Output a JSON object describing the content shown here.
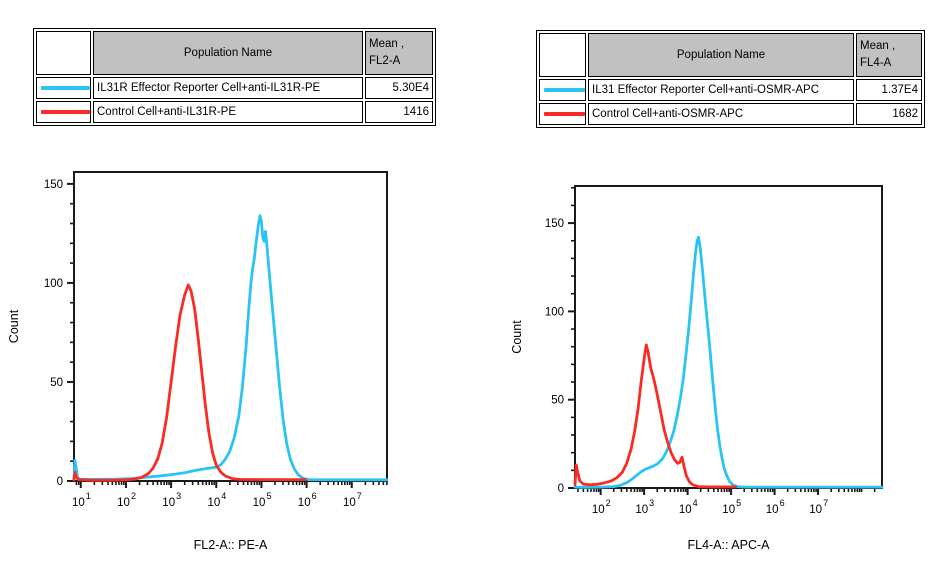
{
  "colors": {
    "cyan": "#2BC4F2",
    "red": "#F92B25",
    "axis": "#1a1a1a",
    "table_header_bg": "#c1c1c1"
  },
  "tables": [
    {
      "header": {
        "population": "Population Name",
        "mean_line1": "Mean ,",
        "mean_line2": "FL2-A"
      },
      "rows": [
        {
          "population": "IL31R Effector Reporter Cell+anti-IL31R-PE",
          "mean": "5.30E4",
          "color": "#2BC4F2"
        },
        {
          "population": "Control Cell+anti-IL31R-PE",
          "mean": "1416",
          "color": "#F92B25"
        }
      ]
    },
    {
      "header": {
        "population": "Population Name",
        "mean_line1": "Mean ,",
        "mean_line2": "FL4-A"
      },
      "rows": [
        {
          "population": "IL31 Effector Reporter Cell+anti-OSMR-APC",
          "mean": "1.37E4",
          "color": "#2BC4F2"
        },
        {
          "population": "Control Cell+anti-OSMR-APC",
          "mean": "1682",
          "color": "#F92B25"
        }
      ]
    }
  ],
  "chart_data": [
    {
      "type": "line",
      "subtype": "flow-histogram",
      "title": "",
      "xlabel": "FL2-A:: PE-A",
      "ylabel": "Count",
      "x_scale": "log",
      "x_log_min": 0.85,
      "x_log_max": 7.78,
      "x_decade_ticks": [
        1,
        2,
        3,
        4,
        5,
        6,
        7
      ],
      "ylim": [
        0,
        156
      ],
      "y_major_ticks": [
        0,
        50,
        100,
        150
      ],
      "y_minor_step": 10,
      "grid": false,
      "legend_position": "table-above",
      "series": [
        {
          "name": "IL31R Effector Reporter Cell+anti-IL31R-PE",
          "color": "#2BC4F2",
          "mean": "5.30E4",
          "points": [
            [
              0.85,
              0.8
            ],
            [
              0.87,
              10.5
            ],
            [
              0.9,
              6
            ],
            [
              0.93,
              1.5
            ],
            [
              1.0,
              0.8
            ],
            [
              1.4,
              0.8
            ],
            [
              1.8,
              0.9
            ],
            [
              2.1,
              1.2
            ],
            [
              2.4,
              1.8
            ],
            [
              2.7,
              2.4
            ],
            [
              3.0,
              3.2
            ],
            [
              3.3,
              4.2
            ],
            [
              3.5,
              5.2
            ],
            [
              3.7,
              6.0
            ],
            [
              3.85,
              6.5
            ],
            [
              4.0,
              7.0
            ],
            [
              4.1,
              8.2
            ],
            [
              4.2,
              11
            ],
            [
              4.3,
              15
            ],
            [
              4.4,
              22
            ],
            [
              4.5,
              33
            ],
            [
              4.58,
              48
            ],
            [
              4.66,
              68
            ],
            [
              4.72,
              87
            ],
            [
              4.77,
              101
            ],
            [
              4.81,
              108
            ],
            [
              4.84,
              112
            ],
            [
              4.88,
              120
            ],
            [
              4.93,
              129
            ],
            [
              4.97,
              134
            ],
            [
              5.0,
              131
            ],
            [
              5.03,
              123
            ],
            [
              5.06,
              121
            ],
            [
              5.09,
              126
            ],
            [
              5.12,
              119
            ],
            [
              5.17,
              106
            ],
            [
              5.24,
              88
            ],
            [
              5.32,
              68
            ],
            [
              5.4,
              48
            ],
            [
              5.48,
              31
            ],
            [
              5.56,
              19
            ],
            [
              5.64,
              11
            ],
            [
              5.73,
              6
            ],
            [
              5.82,
              3
            ],
            [
              5.93,
              1.3
            ],
            [
              6.05,
              0.7
            ],
            [
              6.5,
              0.6
            ],
            [
              7.78,
              0.6
            ]
          ]
        },
        {
          "name": "Control Cell+anti-IL31R-PE",
          "color": "#F92B25",
          "mean": "1416",
          "points": [
            [
              0.85,
              0.5
            ],
            [
              0.87,
              4.5
            ],
            [
              0.9,
              2
            ],
            [
              0.95,
              0.7
            ],
            [
              1.2,
              0.4
            ],
            [
              1.6,
              0.4
            ],
            [
              2.0,
              0.6
            ],
            [
              2.2,
              1.0
            ],
            [
              2.35,
              1.8
            ],
            [
              2.5,
              3.8
            ],
            [
              2.6,
              6.5
            ],
            [
              2.7,
              11
            ],
            [
              2.8,
              19
            ],
            [
              2.9,
              32
            ],
            [
              3.0,
              50
            ],
            [
              3.1,
              68
            ],
            [
              3.2,
              84
            ],
            [
              3.3,
              94
            ],
            [
              3.38,
              99
            ],
            [
              3.44,
              96
            ],
            [
              3.52,
              87
            ],
            [
              3.6,
              72
            ],
            [
              3.68,
              55
            ],
            [
              3.76,
              38
            ],
            [
              3.84,
              24
            ],
            [
              3.92,
              14
            ],
            [
              4.0,
              8
            ],
            [
              4.1,
              4.5
            ],
            [
              4.2,
              2.5
            ],
            [
              4.35,
              1.2
            ],
            [
              4.5,
              0.8
            ],
            [
              5.0,
              0.7
            ],
            [
              5.5,
              0.7
            ],
            [
              5.97,
              0.7
            ]
          ]
        }
      ]
    },
    {
      "type": "line",
      "subtype": "flow-histogram",
      "title": "",
      "xlabel": "FL4-A:: APC-A",
      "ylabel": "Count",
      "x_scale": "log",
      "x_log_min": 1.41,
      "x_log_max": 8.47,
      "x_decade_ticks": [
        2,
        3,
        4,
        5,
        6,
        7
      ],
      "ylim": [
        0,
        171
      ],
      "y_major_ticks": [
        0,
        50,
        100,
        150
      ],
      "y_minor_step": 10,
      "grid": false,
      "legend_position": "table-above",
      "series": [
        {
          "name": "IL31 Effector Reporter Cell+anti-OSMR-APC",
          "color": "#2BC4F2",
          "mean": "1.37E4",
          "points": [
            [
              1.41,
              0.5
            ],
            [
              1.6,
              0.4
            ],
            [
              2.0,
              0.5
            ],
            [
              2.3,
              0.8
            ],
            [
              2.45,
              1.5
            ],
            [
              2.6,
              3
            ],
            [
              2.72,
              5
            ],
            [
              2.82,
              7
            ],
            [
              2.92,
              9
            ],
            [
              3.02,
              10.5
            ],
            [
              3.12,
              11.5
            ],
            [
              3.22,
              12.5
            ],
            [
              3.32,
              14
            ],
            [
              3.42,
              16.5
            ],
            [
              3.52,
              21
            ],
            [
              3.6,
              26
            ],
            [
              3.68,
              32
            ],
            [
              3.76,
              41
            ],
            [
              3.84,
              52
            ],
            [
              3.9,
              62
            ],
            [
              3.96,
              75
            ],
            [
              4.02,
              89
            ],
            [
              4.08,
              105
            ],
            [
              4.13,
              120
            ],
            [
              4.18,
              133
            ],
            [
              4.22,
              140
            ],
            [
              4.25,
              142
            ],
            [
              4.29,
              136
            ],
            [
              4.34,
              124
            ],
            [
              4.39,
              110
            ],
            [
              4.44,
              97
            ],
            [
              4.49,
              85
            ],
            [
              4.54,
              71
            ],
            [
              4.59,
              57
            ],
            [
              4.64,
              44
            ],
            [
              4.69,
              33
            ],
            [
              4.74,
              24
            ],
            [
              4.79,
              17
            ],
            [
              4.84,
              11
            ],
            [
              4.9,
              7
            ],
            [
              4.97,
              3.5
            ],
            [
              5.05,
              1.6
            ],
            [
              5.15,
              0.8
            ],
            [
              5.3,
              0.5
            ],
            [
              8.47,
              0.5
            ]
          ]
        },
        {
          "name": "Control Cell+anti-OSMR-APC",
          "color": "#F92B25",
          "mean": "1682",
          "points": [
            [
              1.41,
              2
            ],
            [
              1.44,
              13
            ],
            [
              1.47,
              9
            ],
            [
              1.52,
              4
            ],
            [
              1.6,
              2.2
            ],
            [
              1.75,
              1.8
            ],
            [
              1.95,
              2.2
            ],
            [
              2.1,
              3
            ],
            [
              2.25,
              4
            ],
            [
              2.38,
              6
            ],
            [
              2.5,
              9
            ],
            [
              2.6,
              14
            ],
            [
              2.7,
              22
            ],
            [
              2.78,
              32
            ],
            [
              2.86,
              45
            ],
            [
              2.93,
              60
            ],
            [
              3.0,
              73
            ],
            [
              3.05,
              81
            ],
            [
              3.09,
              77
            ],
            [
              3.15,
              68
            ],
            [
              3.22,
              62
            ],
            [
              3.3,
              53
            ],
            [
              3.38,
              43
            ],
            [
              3.46,
              33
            ],
            [
              3.54,
              26
            ],
            [
              3.62,
              20
            ],
            [
              3.7,
              16
            ],
            [
              3.77,
              14
            ],
            [
              3.82,
              14.5
            ],
            [
              3.87,
              17.5
            ],
            [
              3.91,
              13
            ],
            [
              3.97,
              7
            ],
            [
              4.04,
              3.5
            ],
            [
              4.12,
              1.8
            ],
            [
              4.25,
              0.8
            ],
            [
              4.5,
              0.6
            ],
            [
              5.1,
              0.6
            ]
          ]
        }
      ]
    }
  ]
}
